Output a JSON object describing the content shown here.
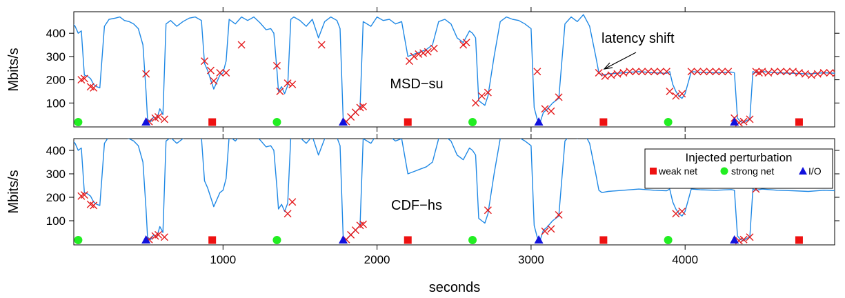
{
  "figure": {
    "xlabel": "seconds",
    "ylabel": "Mbits/s",
    "x_ticks": [
      1000,
      2000,
      3000,
      4000
    ],
    "y_ticks": [
      100,
      200,
      300,
      400
    ],
    "legend_title": "Injected perturbation",
    "legend_entries": [
      "weak net",
      "strong net",
      "I/O"
    ],
    "annotation": "latency shift"
  },
  "colors": {
    "line": "#1e88e5",
    "marker_x": "#e41a1c",
    "weak_net": "#ee1111",
    "strong_net": "#22ee22",
    "io": "#1111dd"
  },
  "chart_data": [
    {
      "type": "line",
      "panel_label": "MSD−su",
      "xlim": [
        0,
        5000
      ],
      "ylim": [
        0,
        500
      ],
      "xlabel": "seconds",
      "ylabel": "Mbits/s",
      "line": {
        "x": [
          0,
          40,
          60,
          80,
          100,
          120,
          140,
          160,
          180,
          200,
          230,
          260,
          300,
          330,
          360,
          390,
          420,
          450,
          480,
          500,
          510,
          530,
          550,
          570,
          590,
          610,
          630,
          660,
          700,
          740,
          780,
          820,
          860,
          880,
          900,
          940,
          980,
          1000,
          1020,
          1040,
          1080,
          1120,
          1160,
          1200,
          1240,
          1280,
          1310,
          1330,
          1350,
          1360,
          1380,
          1400,
          1420,
          1440,
          1460,
          1500,
          1540,
          1580,
          1620,
          1660,
          1700,
          1740,
          1760,
          1780,
          1800,
          1830,
          1860,
          1890,
          1910,
          1960,
          2000,
          2040,
          2080,
          2120,
          2160,
          2200,
          2240,
          2280,
          2320,
          2360,
          2400,
          2440,
          2480,
          2520,
          2560,
          2600,
          2620,
          2640,
          2660,
          2680,
          2700,
          2720,
          2760,
          2800,
          2840,
          2880,
          2920,
          2960,
          3000,
          3020,
          3040,
          3060,
          3080,
          3100,
          3140,
          3180,
          3220,
          3260,
          3300,
          3340,
          3380,
          3420,
          3440,
          3460,
          3500,
          3600,
          3700,
          3800,
          3880,
          3900,
          3920,
          3940,
          3960,
          3980,
          4000,
          4040,
          4100,
          4200,
          4300,
          4320,
          4340,
          4360,
          4380,
          4400,
          4420,
          4440,
          4460,
          4500,
          4600,
          4700,
          4800,
          4900,
          4980
        ],
        "y": [
          460,
          430,
          400,
          410,
          220,
          215,
          205,
          180,
          170,
          165,
          430,
          460,
          465,
          470,
          455,
          450,
          440,
          420,
          350,
          150,
          30,
          20,
          40,
          30,
          75,
          50,
          440,
          455,
          430,
          450,
          465,
          470,
          455,
          270,
          240,
          160,
          220,
          230,
          280,
          460,
          440,
          470,
          455,
          470,
          445,
          415,
          420,
          400,
          240,
          150,
          170,
          140,
          175,
          460,
          470,
          455,
          430,
          460,
          380,
          450,
          470,
          455,
          420,
          30,
          20,
          40,
          60,
          80,
          450,
          430,
          470,
          455,
          460,
          440,
          450,
          300,
          310,
          320,
          330,
          350,
          450,
          460,
          440,
          380,
          360,
          410,
          400,
          380,
          110,
          100,
          90,
          130,
          300,
          450,
          470,
          460,
          455,
          440,
          420,
          80,
          30,
          20,
          60,
          70,
          100,
          120,
          440,
          470,
          450,
          480,
          430,
          300,
          230,
          220,
          225,
          230,
          235,
          230,
          228,
          235,
          180,
          150,
          130,
          120,
          140,
          235,
          232,
          230,
          233,
          230,
          35,
          20,
          15,
          25,
          30,
          235,
          230,
          235,
          230,
          228,
          225,
          230,
          228
        ]
      },
      "x_markers": {
        "x": [
          80,
          100,
          140,
          160,
          500,
          520,
          560,
          580,
          620,
          880,
          920,
          940,
          980,
          1020,
          1120,
          1350,
          1370,
          1420,
          1450,
          1640,
          1800,
          1830,
          1860,
          1890,
          1910,
          2210,
          2240,
          2270,
          2300,
          2330,
          2370,
          2560,
          2580,
          2640,
          2680,
          2720,
          3040,
          3090,
          3130,
          3180,
          3440,
          3480,
          3520,
          3560,
          3600,
          3640,
          3680,
          3720,
          3760,
          3800,
          3840,
          3880,
          3900,
          3940,
          3980,
          4040,
          4080,
          4120,
          4160,
          4200,
          4240,
          4280,
          4320,
          4350,
          4380,
          4420,
          4460,
          4480,
          4500,
          4540,
          4580,
          4620,
          4660,
          4700,
          4740,
          4780,
          4820,
          4860,
          4900,
          4940,
          4980
        ],
        "y": [
          200,
          205,
          170,
          165,
          225,
          20,
          35,
          40,
          30,
          280,
          240,
          195,
          230,
          230,
          350,
          260,
          150,
          185,
          180,
          350,
          20,
          40,
          60,
          80,
          85,
          280,
          300,
          310,
          315,
          320,
          335,
          350,
          360,
          100,
          130,
          145,
          235,
          75,
          65,
          125,
          230,
          215,
          220,
          225,
          230,
          235,
          235,
          235,
          235,
          235,
          235,
          235,
          150,
          130,
          140,
          235,
          235,
          235,
          235,
          235,
          235,
          235,
          35,
          15,
          20,
          30,
          235,
          230,
          235,
          230,
          235,
          235,
          235,
          235,
          230,
          225,
          220,
          225,
          230,
          230,
          228
        ]
      },
      "perturbations": [
        {
          "type": "strong net",
          "x": 60
        },
        {
          "type": "I/O",
          "x": 500
        },
        {
          "type": "weak net",
          "x": 930
        },
        {
          "type": "strong net",
          "x": 1350
        },
        {
          "type": "I/O",
          "x": 1780
        },
        {
          "type": "weak net",
          "x": 2200
        },
        {
          "type": "strong net",
          "x": 2620
        },
        {
          "type": "I/O",
          "x": 3050
        },
        {
          "type": "weak net",
          "x": 3470
        },
        {
          "type": "strong net",
          "x": 3890
        },
        {
          "type": "I/O",
          "x": 4320
        },
        {
          "type": "weak net",
          "x": 4740
        }
      ]
    },
    {
      "type": "line",
      "panel_label": "CDF−hs",
      "xlim": [
        0,
        5000
      ],
      "ylim": [
        0,
        500
      ],
      "xlabel": "seconds",
      "ylabel": "Mbits/s",
      "line": {
        "x": [
          0,
          40,
          60,
          80,
          100,
          120,
          140,
          160,
          180,
          200,
          230,
          260,
          300,
          330,
          360,
          390,
          420,
          450,
          480,
          500,
          510,
          530,
          550,
          570,
          590,
          610,
          630,
          660,
          700,
          740,
          780,
          820,
          860,
          880,
          900,
          940,
          980,
          1000,
          1020,
          1040,
          1080,
          1120,
          1160,
          1200,
          1240,
          1280,
          1310,
          1330,
          1350,
          1360,
          1380,
          1400,
          1420,
          1440,
          1460,
          1500,
          1540,
          1580,
          1620,
          1660,
          1700,
          1740,
          1760,
          1780,
          1800,
          1830,
          1860,
          1890,
          1910,
          1960,
          2000,
          2040,
          2080,
          2120,
          2160,
          2200,
          2240,
          2280,
          2320,
          2360,
          2400,
          2440,
          2480,
          2520,
          2560,
          2600,
          2620,
          2640,
          2660,
          2680,
          2700,
          2720,
          2760,
          2800,
          2840,
          2880,
          2920,
          2960,
          3000,
          3020,
          3040,
          3060,
          3080,
          3100,
          3140,
          3180,
          3220,
          3260,
          3300,
          3340,
          3380,
          3420,
          3440,
          3460,
          3500,
          3600,
          3700,
          3800,
          3880,
          3900,
          3920,
          3940,
          3960,
          3980,
          4000,
          4040,
          4100,
          4200,
          4300,
          4320,
          4340,
          4360,
          4380,
          4400,
          4420,
          4440,
          4460,
          4500,
          4600,
          4700,
          4800,
          4900,
          4980
        ],
        "y": [
          460,
          430,
          400,
          410,
          220,
          215,
          205,
          180,
          170,
          165,
          430,
          460,
          465,
          470,
          455,
          450,
          440,
          420,
          350,
          150,
          30,
          20,
          40,
          30,
          75,
          50,
          440,
          455,
          430,
          450,
          465,
          470,
          455,
          270,
          240,
          160,
          220,
          230,
          280,
          460,
          440,
          470,
          455,
          470,
          445,
          415,
          420,
          400,
          240,
          150,
          170,
          140,
          175,
          460,
          470,
          455,
          430,
          460,
          380,
          450,
          470,
          455,
          420,
          30,
          20,
          40,
          60,
          80,
          450,
          430,
          470,
          455,
          460,
          440,
          450,
          300,
          310,
          320,
          330,
          350,
          450,
          460,
          440,
          380,
          360,
          410,
          400,
          380,
          110,
          100,
          90,
          130,
          300,
          450,
          470,
          460,
          455,
          440,
          420,
          80,
          30,
          20,
          60,
          70,
          100,
          120,
          440,
          470,
          450,
          480,
          430,
          300,
          230,
          220,
          225,
          230,
          235,
          230,
          228,
          235,
          180,
          150,
          130,
          120,
          140,
          235,
          232,
          230,
          233,
          230,
          35,
          20,
          15,
          25,
          30,
          235,
          230,
          235,
          230,
          228,
          225,
          230,
          228
        ]
      },
      "x_markers": {
        "x": [
          80,
          100,
          140,
          160,
          520,
          560,
          580,
          620,
          1420,
          1450,
          1800,
          1830,
          1860,
          1890,
          1910,
          2720,
          3090,
          3130,
          3180,
          3940,
          3980,
          4350,
          4380,
          4420,
          4460
        ],
        "y": [
          205,
          210,
          170,
          165,
          20,
          35,
          40,
          30,
          130,
          180,
          20,
          40,
          60,
          80,
          85,
          145,
          55,
          65,
          125,
          130,
          140,
          15,
          20,
          30,
          235
        ]
      },
      "perturbations": [
        {
          "type": "strong net",
          "x": 60
        },
        {
          "type": "I/O",
          "x": 500
        },
        {
          "type": "weak net",
          "x": 930
        },
        {
          "type": "strong net",
          "x": 1350
        },
        {
          "type": "I/O",
          "x": 1780
        },
        {
          "type": "weak net",
          "x": 2200
        },
        {
          "type": "strong net",
          "x": 2620
        },
        {
          "type": "I/O",
          "x": 3050
        },
        {
          "type": "weak net",
          "x": 3470
        },
        {
          "type": "strong net",
          "x": 3890
        },
        {
          "type": "I/O",
          "x": 4320
        },
        {
          "type": "weak net",
          "x": 4740
        }
      ]
    }
  ]
}
